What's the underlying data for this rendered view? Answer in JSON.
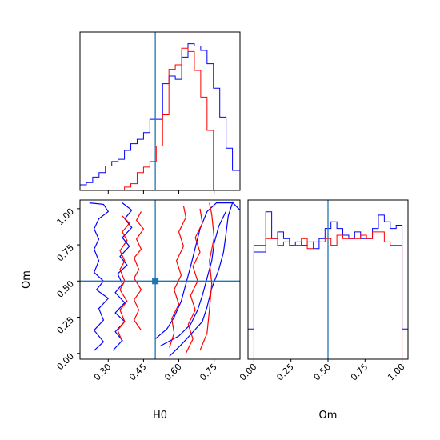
{
  "chart_data": [
    {
      "type": "histogram",
      "panel": "H0 marginal",
      "x_range": [
        0.18,
        0.86
      ],
      "bin_edges": [
        0.18,
        0.207,
        0.234,
        0.261,
        0.288,
        0.315,
        0.342,
        0.369,
        0.396,
        0.423,
        0.45,
        0.477,
        0.504,
        0.531,
        0.558,
        0.585,
        0.612,
        0.639,
        0.666,
        0.693,
        0.72,
        0.747,
        0.774,
        0.801,
        0.828,
        0.86
      ],
      "series": [
        {
          "color": "#0000ff",
          "counts": [
            0.5,
            0.7,
            1.2,
            1.6,
            2.2,
            2.6,
            2.8,
            3.6,
            4.2,
            4.6,
            5.2,
            6.4,
            6.4,
            9.6,
            10.3,
            10.0,
            12.0,
            13.2,
            13.0,
            12.6,
            11.4,
            9.2,
            6.6,
            3.8,
            1.8
          ]
        },
        {
          "color": "#ff0000",
          "counts": [
            0,
            0,
            0,
            0,
            0,
            0,
            0,
            0.3,
            0.6,
            1.6,
            2.1,
            2.6,
            4.0,
            6.8,
            10.9,
            11.3,
            12.8,
            12.5,
            10.8,
            8.4,
            5.4,
            0,
            0,
            0,
            0
          ]
        }
      ],
      "truth_line": 0.5
    },
    {
      "type": "contour",
      "panel": "H0 vs Om",
      "xlabel": "H0",
      "ylabel": "Om",
      "x_ticks": [
        "0.30",
        "0.45",
        "0.60",
        "0.75"
      ],
      "x_tick_values": [
        0.3,
        0.45,
        0.6,
        0.75
      ],
      "y_ticks": [
        "0.00",
        "0.25",
        "0.50",
        "0.75",
        "1.00"
      ],
      "y_tick_values": [
        0,
        0.25,
        0.5,
        0.75,
        1.0
      ],
      "xlim": [
        0.18,
        0.86
      ],
      "ylim": [
        -0.04,
        1.06
      ],
      "truth": {
        "x": 0.5,
        "y": 0.5
      },
      "series": [
        {
          "color": "#0000ff",
          "contours": [
            [
              [
                0.22,
                1.04
              ],
              [
                0.28,
                1.03
              ],
              [
                0.3,
                0.98
              ],
              [
                0.26,
                0.93
              ],
              [
                0.24,
                0.86
              ],
              [
                0.26,
                0.79
              ],
              [
                0.24,
                0.72
              ],
              [
                0.26,
                0.64
              ],
              [
                0.24,
                0.56
              ],
              [
                0.28,
                0.5
              ],
              [
                0.25,
                0.44
              ],
              [
                0.3,
                0.38
              ],
              [
                0.26,
                0.31
              ],
              [
                0.28,
                0.23
              ],
              [
                0.24,
                0.16
              ],
              [
                0.28,
                0.08
              ],
              [
                0.24,
                0.02
              ]
            ],
            [
              [
                0.36,
                1.04
              ],
              [
                0.4,
                0.99
              ],
              [
                0.37,
                0.93
              ],
              [
                0.4,
                0.87
              ],
              [
                0.36,
                0.8
              ],
              [
                0.39,
                0.74
              ],
              [
                0.35,
                0.67
              ],
              [
                0.38,
                0.61
              ],
              [
                0.34,
                0.55
              ],
              [
                0.36,
                0.48
              ],
              [
                0.33,
                0.42
              ],
              [
                0.37,
                0.35
              ],
              [
                0.33,
                0.28
              ],
              [
                0.37,
                0.22
              ],
              [
                0.33,
                0.15
              ],
              [
                0.36,
                0.09
              ],
              [
                0.32,
                0.02
              ]
            ],
            [
              [
                0.56,
                -0.02
              ],
              [
                0.61,
                0.06
              ],
              [
                0.65,
                0.13
              ],
              [
                0.7,
                0.22
              ],
              [
                0.72,
                0.32
              ],
              [
                0.74,
                0.45
              ],
              [
                0.77,
                0.58
              ],
              [
                0.79,
                0.7
              ],
              [
                0.8,
                0.82
              ],
              [
                0.81,
                0.95
              ],
              [
                0.83,
                1.05
              ]
            ],
            [
              [
                0.5,
                0.1
              ],
              [
                0.55,
                0.17
              ],
              [
                0.58,
                0.25
              ],
              [
                0.61,
                0.36
              ],
              [
                0.63,
                0.48
              ],
              [
                0.65,
                0.6
              ],
              [
                0.67,
                0.73
              ],
              [
                0.69,
                0.86
              ],
              [
                0.72,
                0.98
              ],
              [
                0.76,
                1.04
              ],
              [
                0.83,
                1.04
              ],
              [
                0.86,
                0.99
              ]
            ],
            [
              [
                0.52,
                0.05
              ],
              [
                0.6,
                0.12
              ],
              [
                0.65,
                0.2
              ],
              [
                0.68,
                0.3
              ],
              [
                0.7,
                0.4
              ],
              [
                0.72,
                0.52
              ],
              [
                0.74,
                0.64
              ],
              [
                0.75,
                0.76
              ],
              [
                0.77,
                0.88
              ],
              [
                0.8,
                0.98
              ]
            ]
          ]
        },
        {
          "color": "#ff0000",
          "contours": [
            [
              [
                0.36,
                0.95
              ],
              [
                0.39,
                0.9
              ],
              [
                0.36,
                0.84
              ],
              [
                0.38,
                0.78
              ],
              [
                0.35,
                0.71
              ],
              [
                0.37,
                0.64
              ],
              [
                0.35,
                0.58
              ],
              [
                0.37,
                0.5
              ],
              [
                0.35,
                0.44
              ],
              [
                0.38,
                0.36
              ],
              [
                0.35,
                0.3
              ],
              [
                0.37,
                0.22
              ],
              [
                0.34,
                0.16
              ],
              [
                0.36,
                0.08
              ]
            ],
            [
              [
                0.44,
                0.98
              ],
              [
                0.42,
                0.92
              ],
              [
                0.45,
                0.86
              ],
              [
                0.42,
                0.79
              ],
              [
                0.44,
                0.72
              ],
              [
                0.41,
                0.66
              ],
              [
                0.43,
                0.58
              ],
              [
                0.41,
                0.52
              ],
              [
                0.44,
                0.44
              ],
              [
                0.41,
                0.37
              ],
              [
                0.43,
                0.3
              ],
              [
                0.41,
                0.23
              ],
              [
                0.44,
                0.16
              ]
            ],
            [
              [
                0.56,
                0.04
              ],
              [
                0.58,
                0.14
              ],
              [
                0.57,
                0.24
              ],
              [
                0.6,
                0.34
              ],
              [
                0.58,
                0.44
              ],
              [
                0.61,
                0.54
              ],
              [
                0.59,
                0.64
              ],
              [
                0.62,
                0.74
              ],
              [
                0.6,
                0.84
              ],
              [
                0.63,
                0.94
              ],
              [
                0.62,
                1.02
              ]
            ],
            [
              [
                0.63,
                0.0
              ],
              [
                0.66,
                0.1
              ],
              [
                0.64,
                0.2
              ],
              [
                0.67,
                0.3
              ],
              [
                0.65,
                0.4
              ],
              [
                0.68,
                0.5
              ],
              [
                0.66,
                0.6
              ],
              [
                0.69,
                0.7
              ],
              [
                0.67,
                0.8
              ],
              [
                0.7,
                0.9
              ],
              [
                0.69,
                1.0
              ]
            ],
            [
              [
                0.69,
                0.02
              ],
              [
                0.72,
                0.14
              ],
              [
                0.73,
                0.3
              ],
              [
                0.74,
                0.48
              ],
              [
                0.73,
                0.64
              ],
              [
                0.75,
                0.8
              ],
              [
                0.74,
                0.96
              ],
              [
                0.73,
                1.04
              ]
            ]
          ]
        }
      ]
    },
    {
      "type": "histogram",
      "panel": "Om marginal",
      "xlabel": "Om",
      "x_ticks": [
        "0.00",
        "0.25",
        "0.50",
        "0.75",
        "1.00"
      ],
      "x_tick_values": [
        0,
        0.25,
        0.5,
        0.75,
        1.0
      ],
      "x_range": [
        -0.04,
        1.04
      ],
      "bin_edges": [
        -0.04,
        0.0,
        0.04,
        0.08,
        0.12,
        0.16,
        0.2,
        0.24,
        0.28,
        0.32,
        0.36,
        0.4,
        0.44,
        0.48,
        0.52,
        0.56,
        0.6,
        0.64,
        0.68,
        0.72,
        0.76,
        0.8,
        0.84,
        0.88,
        0.92,
        0.96,
        1.0,
        1.04
      ],
      "series": [
        {
          "color": "#0000ff",
          "counts": [
            0.9,
            3.2,
            3.2,
            4.4,
            3.6,
            3.8,
            3.6,
            3.4,
            3.5,
            3.4,
            3.5,
            3.3,
            3.6,
            3.9,
            4.1,
            3.9,
            3.7,
            3.6,
            3.8,
            3.6,
            3.6,
            3.9,
            4.3,
            4.1,
            3.9,
            4.0,
            0.9
          ]
        },
        {
          "color": "#ff0000",
          "counts": [
            0,
            3.4,
            3.4,
            3.6,
            3.6,
            3.4,
            3.5,
            3.4,
            3.4,
            3.6,
            3.3,
            3.5,
            3.5,
            3.6,
            3.4,
            3.7,
            3.6,
            3.6,
            3.6,
            3.7,
            3.6,
            3.8,
            3.8,
            3.5,
            3.4,
            3.4,
            0
          ]
        }
      ],
      "truth_line": 0.5
    }
  ]
}
